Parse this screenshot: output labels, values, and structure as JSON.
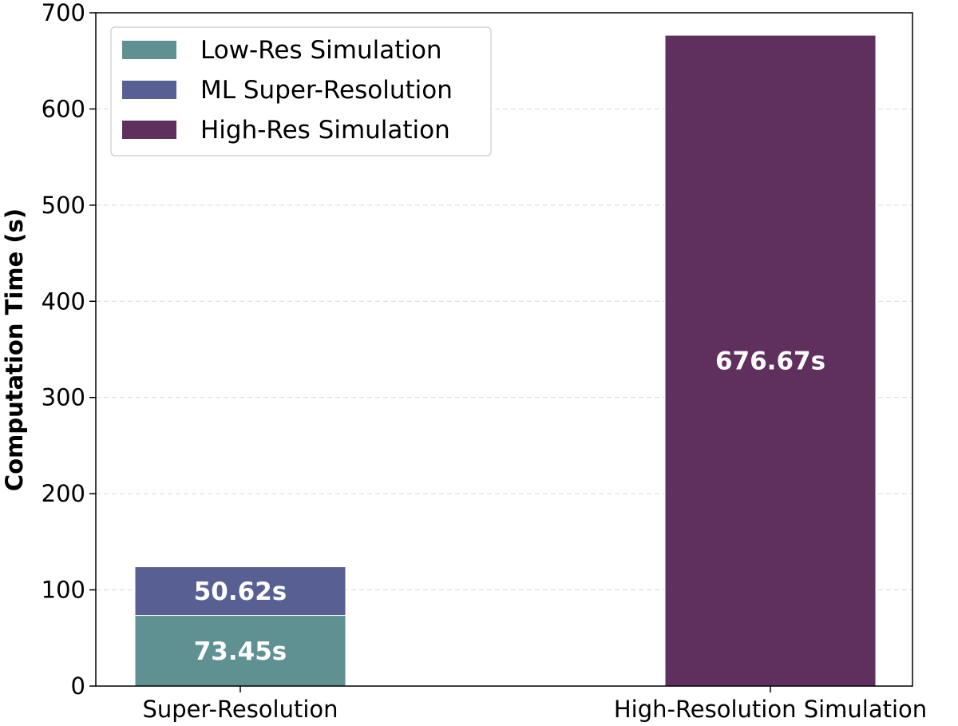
{
  "chart_data": {
    "type": "bar",
    "stacked": true,
    "categories": [
      "Super-Resolution",
      "High-Resolution Simulation"
    ],
    "series": [
      {
        "name": "Low-Res Simulation",
        "color": "#5f9092",
        "values": [
          73.45,
          0
        ],
        "labels": [
          "73.45s",
          ""
        ]
      },
      {
        "name": "ML Super-Resolution",
        "color": "#586093",
        "values": [
          50.62,
          0
        ],
        "labels": [
          "50.62s",
          ""
        ]
      },
      {
        "name": "High-Res Simulation",
        "color": "#5f305e",
        "values": [
          0,
          676.67
        ],
        "labels": [
          "",
          "676.67s"
        ]
      }
    ],
    "xlabel": "",
    "ylabel": "Computation Time (s)",
    "ylim": [
      0,
      700
    ],
    "yticks": [
      "0",
      "100",
      "200",
      "300",
      "400",
      "500",
      "600",
      "700"
    ],
    "grid": "horizontal dashed",
    "legend_position": "top-left"
  }
}
